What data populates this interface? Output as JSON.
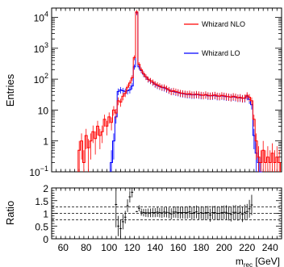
{
  "chart_data": [
    {
      "type": "line",
      "panel": "main",
      "ylabel": "Entries",
      "yscale": "log",
      "ylim": [
        0.1,
        20000
      ],
      "xlim": [
        50,
        250
      ],
      "ytick_labels": [
        {
          "v": 0.1,
          "base": "10",
          "exp": "−1"
        },
        {
          "v": 1,
          "base": "1",
          "exp": ""
        },
        {
          "v": 10,
          "base": "10",
          "exp": ""
        },
        {
          "v": 100,
          "base": "10",
          "exp": "2"
        },
        {
          "v": 1000,
          "base": "10",
          "exp": "3"
        },
        {
          "v": 10000,
          "base": "10",
          "exp": "4"
        }
      ],
      "legend_placement": "top-right",
      "series": [
        {
          "name": "Whizard NLO",
          "color": "#ff0000",
          "bin_width": 2,
          "x": [
            74,
            76,
            78,
            80,
            82,
            84,
            86,
            88,
            90,
            92,
            94,
            96,
            98,
            100,
            102,
            104,
            106,
            108,
            110,
            112,
            114,
            116,
            118,
            120,
            122,
            124,
            126,
            128,
            130,
            132,
            134,
            136,
            138,
            140,
            142,
            144,
            146,
            148,
            150,
            152,
            154,
            156,
            158,
            160,
            162,
            164,
            166,
            168,
            170,
            172,
            174,
            176,
            178,
            180,
            182,
            184,
            186,
            188,
            190,
            192,
            194,
            196,
            198,
            200,
            202,
            204,
            206,
            208,
            210,
            212,
            214,
            216,
            218,
            220,
            222,
            224,
            226,
            228,
            230,
            232,
            234,
            236,
            238,
            240,
            242,
            244,
            246,
            248
          ],
          "values": [
            0.5,
            1,
            0.2,
            1.5,
            0.6,
            1,
            2,
            1.2,
            3,
            1.5,
            2,
            5,
            3,
            6,
            4,
            10,
            8,
            20,
            18,
            28,
            35,
            55,
            75,
            110,
            500,
            15000,
            300,
            200,
            150,
            120,
            100,
            90,
            80,
            70,
            65,
            60,
            55,
            55,
            50,
            45,
            40,
            42,
            40,
            38,
            36,
            35,
            34,
            33,
            34,
            32,
            32,
            33,
            32,
            31,
            30,
            32,
            30,
            29,
            30,
            31,
            29,
            28,
            30,
            29,
            28,
            27,
            26,
            28,
            27,
            25,
            26,
            24,
            25,
            30,
            26,
            20,
            5,
            1,
            0.3,
            0.2,
            0.5,
            0.2,
            0.3,
            0.2,
            0.4,
            0.2,
            0.3,
            0.2
          ]
        },
        {
          "name": "Whizard LO",
          "color": "#0000ff",
          "bin_width": 2,
          "x": [
            102,
            104,
            106,
            108,
            110,
            112,
            114,
            116,
            118,
            120,
            122,
            124,
            126,
            128,
            130,
            132,
            134,
            136,
            138,
            140,
            142,
            144,
            146,
            148,
            150,
            152,
            154,
            156,
            158,
            160,
            162,
            164,
            166,
            168,
            170,
            172,
            174,
            176,
            178,
            180,
            182,
            184,
            186,
            188,
            190,
            192,
            194,
            196,
            198,
            200,
            202,
            204,
            206,
            208,
            210,
            212,
            214,
            216,
            218,
            220,
            222,
            224,
            226,
            228,
            230,
            232
          ],
          "values": [
            0.2,
            1,
            6,
            40,
            45,
            42,
            40,
            42,
            45,
            60,
            250,
            14000,
            250,
            190,
            145,
            118,
            98,
            88,
            78,
            68,
            62,
            58,
            54,
            52,
            48,
            44,
            41,
            40,
            38,
            37,
            35,
            34,
            33,
            32,
            32,
            31,
            31,
            32,
            31,
            30,
            30,
            31,
            29,
            29,
            29,
            30,
            28,
            28,
            29,
            28,
            27,
            27,
            26,
            27,
            26,
            25,
            25,
            24,
            24,
            28,
            22,
            15,
            1.5,
            0.4,
            0.2,
            0.1
          ]
        }
      ]
    },
    {
      "type": "scatter",
      "panel": "ratio",
      "ylabel": "Ratio",
      "ylim": [
        0,
        2
      ],
      "xlim": [
        50,
        250
      ],
      "xlabel_base": "m",
      "xlabel_sub": "rec",
      "xlabel_unit": " [GeV]",
      "ytick_labels": [
        "0",
        "0.5",
        "1",
        "1.5",
        "2"
      ],
      "xtick_labels": [
        "60",
        "80",
        "100",
        "120",
        "140",
        "160",
        "180",
        "200",
        "220",
        "240"
      ],
      "reference_lines": [
        0.75,
        1,
        1.25
      ],
      "x": [
        106,
        108,
        110,
        112,
        114,
        116,
        118,
        120,
        122,
        124,
        126,
        128,
        130,
        132,
        134,
        136,
        138,
        140,
        142,
        144,
        146,
        148,
        150,
        152,
        154,
        156,
        158,
        160,
        162,
        164,
        166,
        168,
        170,
        172,
        174,
        176,
        178,
        180,
        182,
        184,
        186,
        188,
        190,
        192,
        194,
        196,
        198,
        200,
        202,
        204,
        206,
        208,
        210,
        212,
        214,
        216,
        218,
        220,
        222,
        224
      ],
      "values": [
        1.35,
        0.5,
        0.4,
        0.67,
        0.85,
        1.3,
        1.65,
        1.83,
        2.0,
        1.07,
        1.2,
        1.05,
        1.03,
        1.02,
        1.02,
        1.02,
        1.03,
        1.03,
        1.05,
        1.03,
        1.02,
        1.05,
        1.04,
        1.02,
        0.98,
        1.05,
        1.05,
        1.03,
        1.03,
        1.03,
        1.03,
        1.03,
        1.06,
        1.0,
        1.03,
        1.06,
        1.0,
        1.03,
        1.0,
        1.03,
        1.03,
        0.93,
        1.03,
        1.03,
        1.0,
        1.0,
        1.03,
        1.04,
        1.04,
        1.0,
        0.96,
        1.04,
        1.04,
        1.0,
        1.04,
        0.96,
        1.04,
        1.07,
        1.18,
        1.33
      ],
      "errors": [
        0.9,
        0.4,
        0.35,
        0.3,
        0.25,
        0.25,
        0.22,
        0.2,
        0.1,
        0.02,
        0.12,
        0.14,
        0.15,
        0.16,
        0.17,
        0.17,
        0.18,
        0.18,
        0.19,
        0.19,
        0.2,
        0.2,
        0.2,
        0.21,
        0.22,
        0.22,
        0.22,
        0.23,
        0.23,
        0.23,
        0.24,
        0.24,
        0.24,
        0.25,
        0.25,
        0.25,
        0.25,
        0.25,
        0.26,
        0.26,
        0.26,
        0.26,
        0.26,
        0.27,
        0.27,
        0.27,
        0.27,
        0.27,
        0.28,
        0.28,
        0.28,
        0.28,
        0.29,
        0.29,
        0.29,
        0.3,
        0.3,
        0.3,
        0.35,
        0.4
      ]
    }
  ],
  "colors": {
    "nlo": "#ff0000",
    "lo": "#0000ff"
  }
}
